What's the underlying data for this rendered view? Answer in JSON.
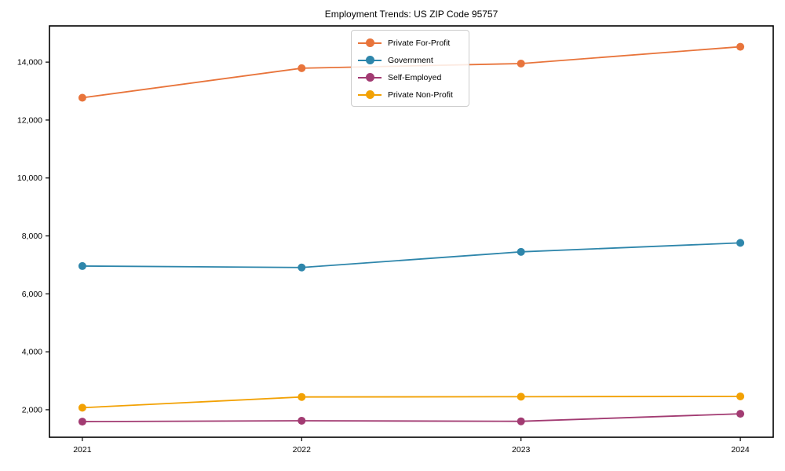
{
  "figure": {
    "title": "Employment Trends: US ZIP Code 95757"
  },
  "chart_data": {
    "type": "line",
    "title": "Employment Trends: US ZIP Code 95757",
    "xlabel": "",
    "ylabel": "",
    "grid": false,
    "legend_position": "upper center",
    "background": "#ffffff",
    "axis_color": "#000000",
    "x": [
      2021,
      2022,
      2023,
      2024
    ],
    "xtick_labels": [
      "2021",
      "2022",
      "2023",
      "2024"
    ],
    "yticks": [
      2000,
      4000,
      6000,
      8000,
      10000,
      12000,
      14000
    ],
    "ytick_labels": [
      "2,000",
      "4,000",
      "6,000",
      "8,000",
      "10,000",
      "12,000",
      "14,000"
    ],
    "xlim": [
      2020.85,
      2024.15
    ],
    "ylim": [
      1050,
      15250
    ],
    "series": [
      {
        "name": "Private For-Profit",
        "color": "#E8743B",
        "values": [
          12770,
          13790,
          13950,
          14530
        ]
      },
      {
        "name": "Government",
        "color": "#2E86AB",
        "values": [
          6960,
          6910,
          7450,
          7760
        ]
      },
      {
        "name": "Self-Employed",
        "color": "#A23B72",
        "values": [
          1590,
          1620,
          1600,
          1860
        ]
      },
      {
        "name": "Private Non-Profit",
        "color": "#F2A104",
        "values": [
          2070,
          2440,
          2450,
          2460
        ]
      }
    ]
  }
}
